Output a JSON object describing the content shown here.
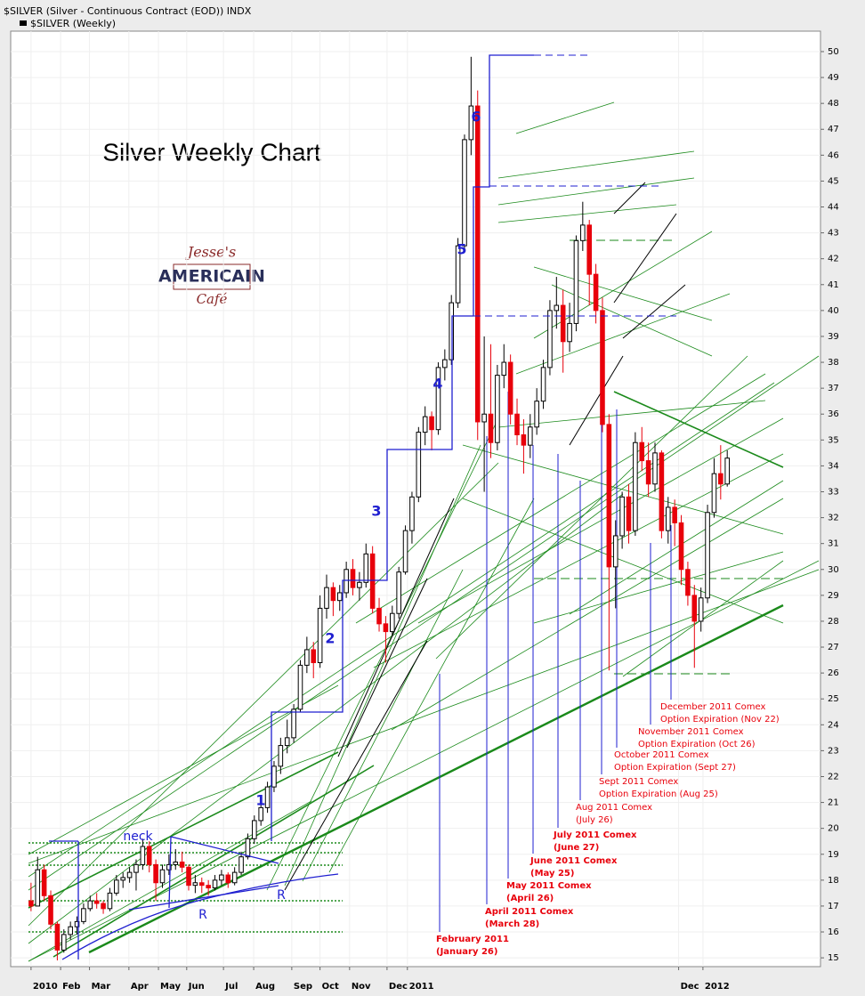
{
  "chart_data": {
    "type": "candlestick",
    "header": "$SILVER (Silver - Continuous Contract (EOD)) INDX",
    "title": "Silver Weekly Chart",
    "logo": [
      "Jesse's",
      "AMERICAIN",
      "Café"
    ],
    "wave_labels": [
      "1",
      "2",
      "3",
      "4",
      "5",
      "6"
    ],
    "pattern_labels": [
      "neck",
      "R",
      "R"
    ],
    "annotations": [
      [
        "February 2011",
        "(January 26)"
      ],
      [
        "April 2011 Comex",
        "(March 28)"
      ],
      [
        "May 2011 Comex",
        "(April 26)"
      ],
      [
        "June 2011 Comex",
        "(May 25)"
      ],
      [
        "July 2011 Comex",
        "(June 27)"
      ],
      [
        "Aug 2011 Comex",
        "(July 26)"
      ],
      [
        "Sept 2011 Comex",
        "Option Expiration (Aug 25)"
      ],
      [
        "October 2011 Comex",
        "Option Expiration (Sept 27)"
      ],
      [
        "November 2011 Comex",
        "Option Expiration (Oct 26)"
      ],
      [
        "December 2011 Comex",
        "Option Expiration (Nov 22)"
      ]
    ],
    "xlim": [
      -3.1,
      120.2
    ],
    "xticks": [
      {
        "value": 0,
        "label": "2010"
      },
      {
        "value": 4.5,
        "label": "Feb"
      },
      {
        "value": 8.9,
        "label": "Mar"
      },
      {
        "value": 14.9,
        "label": "Apr"
      },
      {
        "value": 19.4,
        "label": "May"
      },
      {
        "value": 23.7,
        "label": "Jun"
      },
      {
        "value": 29.3,
        "label": "Jul"
      },
      {
        "value": 33.9,
        "label": "Aug"
      },
      {
        "value": 39.7,
        "label": "Sep"
      },
      {
        "value": 44,
        "label": "Oct"
      },
      {
        "value": 48.5,
        "label": "Nov"
      },
      {
        "value": 54.2,
        "label": "Dec"
      },
      {
        "value": 57.3,
        "label": "2011"
      },
      {
        "value": 98.6,
        "label": "Dec"
      },
      {
        "value": 102.3,
        "label": "2012"
      }
    ],
    "ylim": [
      14.66,
      50.79
    ],
    "yticks": [
      15,
      16,
      17,
      18,
      19,
      20,
      21,
      22,
      23,
      24,
      25,
      26,
      27,
      28,
      29,
      30,
      31,
      32,
      33,
      34,
      35,
      36,
      37,
      38,
      39,
      40,
      41,
      42,
      43,
      44,
      45,
      46,
      47,
      48,
      49,
      50
    ],
    "grid": true,
    "series": [
      {
        "name": "$SILVER (Weekly)",
        "up_color": "#ffffff",
        "down_color": "#e8000b",
        "values": [
          [
            17.2,
            17.9,
            16.8,
            17.0
          ],
          [
            17.0,
            18.9,
            17.0,
            18.4
          ],
          [
            18.4,
            18.6,
            17.2,
            17.4
          ],
          [
            17.4,
            17.6,
            16.1,
            16.3
          ],
          [
            16.3,
            16.4,
            14.9,
            15.3
          ],
          [
            15.3,
            16.1,
            15.2,
            15.9
          ],
          [
            15.9,
            16.4,
            15.7,
            16.2
          ],
          [
            16.2,
            16.6,
            15.9,
            16.4
          ],
          [
            16.4,
            17.1,
            16.3,
            16.9
          ],
          [
            16.9,
            17.4,
            16.8,
            17.2
          ],
          [
            17.2,
            17.5,
            16.9,
            17.1
          ],
          [
            17.1,
            17.2,
            16.7,
            16.9
          ],
          [
            16.9,
            17.7,
            16.8,
            17.5
          ],
          [
            17.5,
            18.2,
            17.4,
            18.0
          ],
          [
            18.0,
            18.3,
            17.7,
            18.1
          ],
          [
            18.1,
            18.5,
            17.9,
            18.3
          ],
          [
            18.3,
            18.8,
            17.6,
            18.6
          ],
          [
            18.6,
            19.6,
            18.4,
            19.3
          ],
          [
            19.3,
            19.5,
            18.3,
            18.6
          ],
          [
            18.6,
            18.8,
            17.2,
            17.9
          ],
          [
            17.9,
            18.6,
            17.7,
            18.4
          ],
          [
            18.4,
            19.0,
            18.2,
            18.6
          ],
          [
            18.6,
            19.2,
            18.4,
            18.7
          ],
          [
            18.7,
            19.1,
            18.3,
            18.5
          ],
          [
            18.5,
            18.6,
            17.6,
            17.8
          ],
          [
            17.8,
            18.2,
            17.5,
            17.9
          ],
          [
            17.9,
            18.1,
            17.5,
            17.8
          ],
          [
            17.8,
            18.0,
            17.4,
            17.7
          ],
          [
            17.7,
            18.2,
            17.6,
            18.0
          ],
          [
            18.0,
            18.4,
            17.8,
            18.2
          ],
          [
            18.2,
            18.3,
            17.7,
            17.9
          ],
          [
            17.9,
            18.5,
            17.8,
            18.3
          ],
          [
            18.3,
            19.1,
            18.2,
            18.9
          ],
          [
            18.9,
            19.8,
            18.8,
            19.6
          ],
          [
            19.6,
            20.5,
            19.4,
            20.3
          ],
          [
            20.3,
            21.0,
            20.1,
            20.8
          ],
          [
            20.8,
            21.8,
            20.6,
            21.6
          ],
          [
            21.6,
            22.6,
            21.4,
            22.4
          ],
          [
            22.4,
            23.5,
            22.1,
            23.2
          ],
          [
            23.2,
            24.2,
            22.9,
            23.5
          ],
          [
            23.5,
            24.8,
            23.3,
            24.6
          ],
          [
            24.6,
            26.5,
            24.5,
            26.3
          ],
          [
            26.3,
            27.4,
            26.0,
            26.9
          ],
          [
            26.9,
            27.2,
            25.8,
            26.4
          ],
          [
            26.4,
            29.0,
            26.2,
            28.5
          ],
          [
            28.5,
            29.8,
            28.1,
            29.3
          ],
          [
            29.3,
            29.5,
            28.2,
            28.8
          ],
          [
            28.8,
            29.4,
            28.4,
            29.1
          ],
          [
            29.1,
            30.3,
            28.9,
            30.0
          ],
          [
            30.0,
            30.4,
            29.0,
            29.3
          ],
          [
            29.3,
            29.9,
            28.8,
            29.5
          ],
          [
            29.5,
            31.0,
            29.3,
            30.6
          ],
          [
            30.6,
            30.9,
            28.3,
            28.5
          ],
          [
            28.5,
            28.9,
            27.6,
            27.9
          ],
          [
            27.9,
            28.2,
            26.4,
            27.6
          ],
          [
            27.6,
            28.6,
            27.4,
            28.3
          ],
          [
            28.3,
            30.1,
            28.1,
            29.9
          ],
          [
            29.9,
            31.7,
            29.8,
            31.5
          ],
          [
            31.5,
            33.0,
            31.0,
            32.8
          ],
          [
            32.8,
            35.5,
            32.6,
            35.3
          ],
          [
            35.3,
            36.3,
            34.8,
            35.9
          ],
          [
            35.9,
            36.1,
            34.6,
            35.4
          ],
          [
            35.4,
            38.0,
            35.2,
            37.8
          ],
          [
            37.8,
            38.5,
            37.3,
            38.1
          ],
          [
            38.1,
            40.6,
            37.9,
            40.3
          ],
          [
            40.3,
            42.8,
            40.1,
            42.5
          ],
          [
            42.5,
            46.8,
            42.3,
            46.6
          ],
          [
            46.6,
            49.8,
            46.0,
            47.9
          ],
          [
            47.9,
            48.5,
            35.0,
            35.7
          ],
          [
            35.7,
            39.0,
            33.0,
            36.0
          ],
          [
            36.0,
            38.7,
            34.3,
            34.9
          ],
          [
            34.9,
            37.9,
            34.6,
            37.5
          ],
          [
            37.5,
            38.7,
            37.0,
            38.0
          ],
          [
            38.0,
            38.3,
            35.6,
            36.0
          ],
          [
            36.0,
            36.6,
            34.8,
            35.2
          ],
          [
            35.2,
            35.8,
            33.7,
            34.8
          ],
          [
            34.8,
            36.0,
            34.3,
            35.5
          ],
          [
            35.5,
            37.0,
            35.2,
            36.5
          ],
          [
            36.5,
            38.1,
            36.2,
            37.8
          ],
          [
            37.8,
            40.4,
            37.5,
            40.0
          ],
          [
            40.0,
            41.3,
            39.3,
            40.2
          ],
          [
            40.2,
            40.8,
            37.6,
            38.8
          ],
          [
            38.8,
            40.3,
            38.4,
            39.5
          ],
          [
            39.5,
            42.9,
            39.2,
            42.7
          ],
          [
            42.7,
            44.2,
            42.3,
            43.3
          ],
          [
            43.3,
            43.5,
            40.2,
            41.4
          ],
          [
            41.4,
            41.8,
            39.5,
            40.0
          ],
          [
            40.0,
            40.5,
            35.3,
            35.6
          ],
          [
            35.6,
            36.0,
            26.1,
            30.1
          ],
          [
            30.1,
            31.9,
            28.5,
            31.3
          ],
          [
            31.3,
            33.0,
            30.8,
            32.8
          ],
          [
            32.8,
            33.3,
            31.0,
            31.5
          ],
          [
            31.5,
            35.3,
            31.3,
            34.9
          ],
          [
            34.9,
            35.5,
            33.8,
            34.2
          ],
          [
            34.2,
            34.9,
            32.8,
            33.3
          ],
          [
            33.3,
            34.9,
            33.0,
            34.5
          ],
          [
            34.5,
            34.6,
            31.2,
            31.5
          ],
          [
            31.5,
            32.8,
            31.0,
            32.4
          ],
          [
            32.4,
            32.7,
            30.9,
            31.8
          ],
          [
            31.8,
            32.1,
            29.4,
            30.0
          ],
          [
            30.0,
            30.3,
            28.6,
            29.0
          ],
          [
            29.0,
            29.4,
            26.2,
            28.0
          ],
          [
            28.0,
            29.3,
            27.6,
            28.9
          ],
          [
            28.9,
            32.5,
            28.7,
            32.2
          ],
          [
            32.2,
            34.3,
            32.0,
            33.7
          ],
          [
            33.7,
            34.8,
            32.7,
            33.3
          ],
          [
            33.3,
            34.6,
            33.2,
            34.3
          ]
        ]
      }
    ]
  }
}
